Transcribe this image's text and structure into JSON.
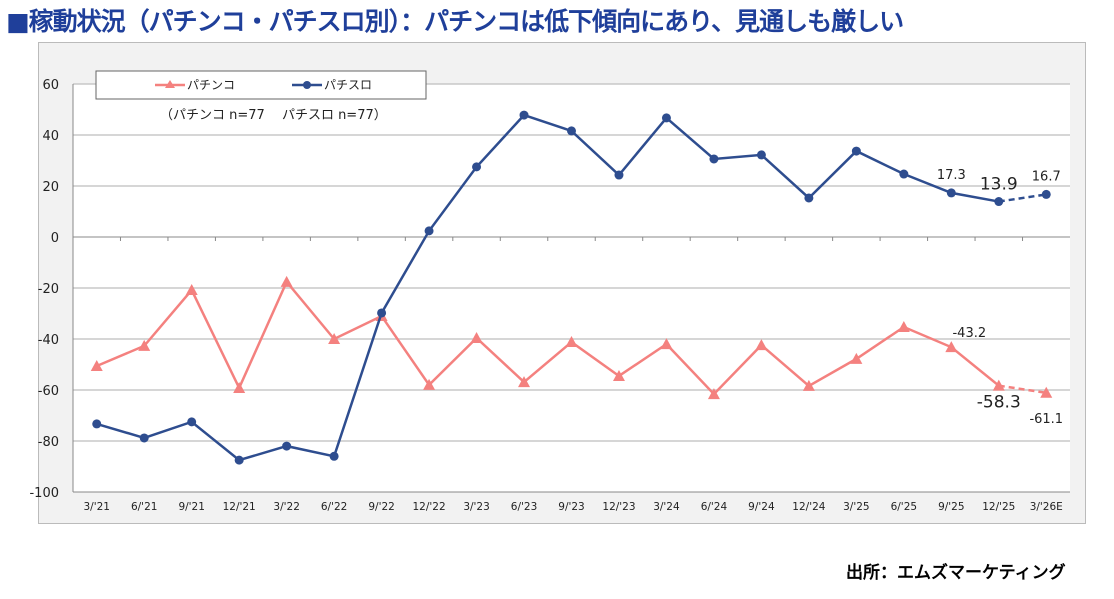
{
  "title": "■稼動状況（パチンコ・パチスロ別）：パチンコは低下傾向にあり、見通しも厳しい",
  "source": "出所：エムズマーケティング",
  "chart_data": {
    "type": "line",
    "title": "稼動状況（パチンコ・パチスロ別）",
    "categories": [
      "3/'21",
      "6/'21",
      "9/'21",
      "12/'21",
      "3/'22",
      "6/'22",
      "9/'22",
      "12/'22",
      "3/'23",
      "6/'23",
      "9/'23",
      "12/'23",
      "3/'24",
      "6/'24",
      "9/'24",
      "12/'24",
      "3/'25",
      "6/'25",
      "9/'25",
      "12/'25",
      "3/'26E"
    ],
    "ylim": [
      -100,
      60
    ],
    "yticks": [
      60,
      40,
      20,
      0,
      -20,
      -40,
      -60,
      -80,
      -100
    ],
    "grid": true,
    "legend_position": "top-left",
    "note": "（パチンコ n=77　 パチスロ n=77）",
    "series": [
      {
        "name": "パチンコ",
        "color": "#f4817f",
        "marker": "triangle",
        "values": [
          -50.6,
          -42.7,
          -20.8,
          -59.2,
          -17.6,
          -40.0,
          -31.0,
          -58.0,
          -39.6,
          -56.9,
          -41.2,
          -54.5,
          -42.0,
          -61.6,
          -42.4,
          -58.4,
          -47.8,
          -35.3,
          -43.2,
          -58.3,
          -61.1
        ],
        "labels": {
          "18": "-43.2",
          "19": "-58.3",
          "20": "-61.1"
        },
        "estimate_from": 19
      },
      {
        "name": "パチスロ",
        "color": "#2e4d8f",
        "marker": "circle",
        "values": [
          -73.3,
          -78.8,
          -72.5,
          -87.5,
          -82.0,
          -86.0,
          -29.8,
          2.4,
          27.5,
          47.8,
          41.6,
          24.3,
          46.7,
          30.6,
          32.2,
          15.3,
          33.7,
          24.7,
          17.3,
          13.9,
          16.7
        ],
        "labels": {
          "18": "17.3",
          "19": "13.9",
          "20": "16.7"
        },
        "estimate_from": 19
      }
    ]
  }
}
